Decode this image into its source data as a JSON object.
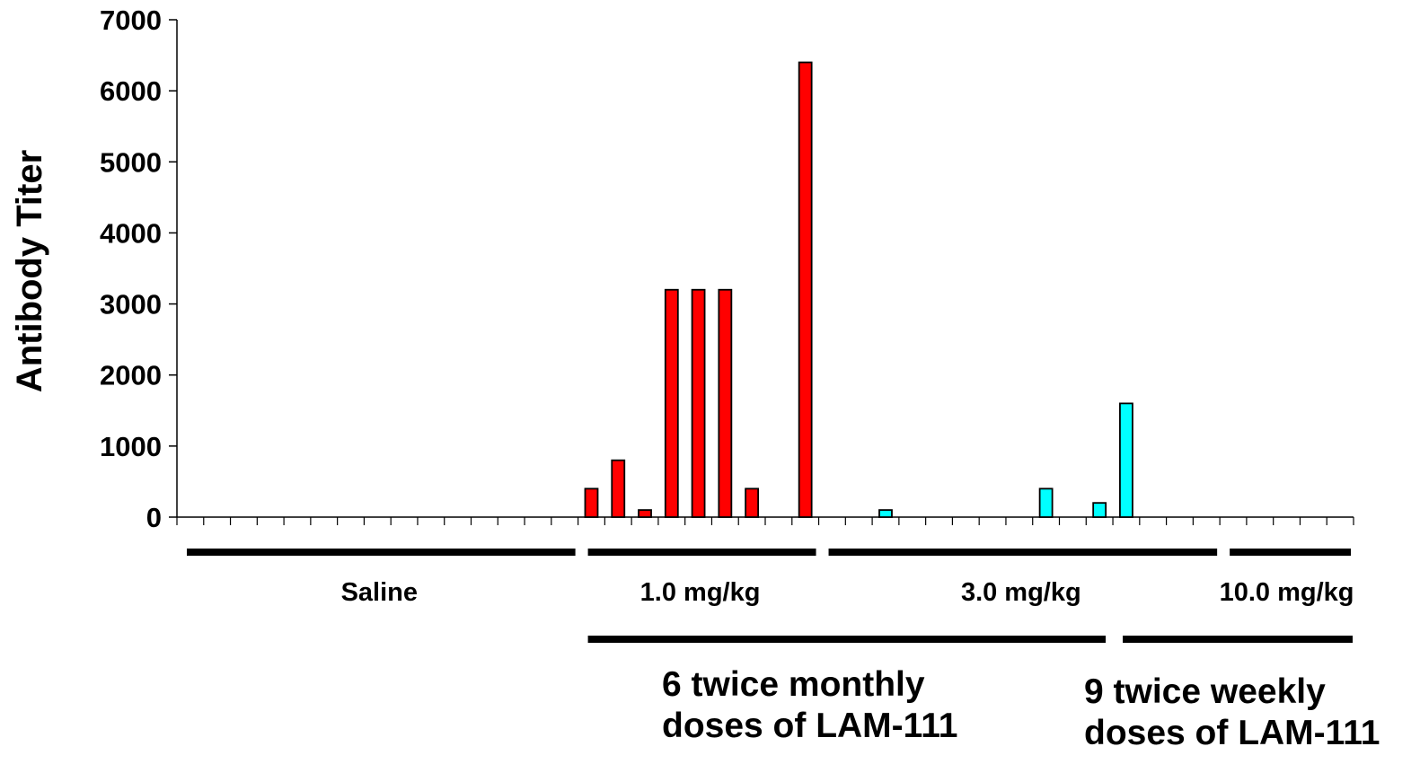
{
  "chart_data": {
    "type": "bar",
    "ylabel": "Antibody Titer",
    "ylim": [
      0,
      7000
    ],
    "yticks": [
      "0",
      "1000",
      "2000",
      "3000",
      "4000",
      "5000",
      "6000",
      "7000"
    ],
    "grid": false,
    "legend": "none",
    "n_slots": 44,
    "series": [
      {
        "values": [
          0,
          0,
          0,
          0,
          0,
          0,
          0,
          0,
          0,
          0,
          0,
          0,
          0,
          0,
          0,
          400,
          800,
          100,
          3200,
          3200,
          3200,
          400,
          0,
          6400,
          0,
          0,
          0,
          0,
          0,
          0,
          0,
          0,
          0,
          0,
          0,
          0,
          0,
          0,
          0,
          0,
          0,
          0,
          0,
          0
        ],
        "color": "#ff0000"
      },
      {
        "values": [
          0,
          0,
          0,
          0,
          0,
          0,
          0,
          0,
          0,
          0,
          0,
          0,
          0,
          0,
          0,
          0,
          0,
          0,
          0,
          0,
          0,
          0,
          0,
          0,
          0,
          0,
          100,
          0,
          0,
          0,
          0,
          0,
          400,
          0,
          200,
          1600,
          0,
          0,
          0,
          0,
          0,
          0,
          0,
          0
        ],
        "color": "#00ffff"
      }
    ],
    "dose_groups": [
      {
        "label": "Saline",
        "from": 0,
        "to": 14
      },
      {
        "label": "1.0 mg/kg",
        "from": 15,
        "to": 23
      },
      {
        "label": "3.0 mg/kg",
        "from": 24,
        "to": 38
      },
      {
        "label": "10.0 mg/kg",
        "from": 39,
        "to": 43
      }
    ],
    "regimens": [
      {
        "line1": "6 twice monthly",
        "line2": "doses of LAM-111",
        "from": 15,
        "to": 34
      },
      {
        "line1": "9 twice weekly",
        "line2": "doses of LAM-111",
        "from": 35,
        "to": 43
      }
    ]
  },
  "colors": {
    "axis": "#000000",
    "bar_outline": "#000000"
  }
}
